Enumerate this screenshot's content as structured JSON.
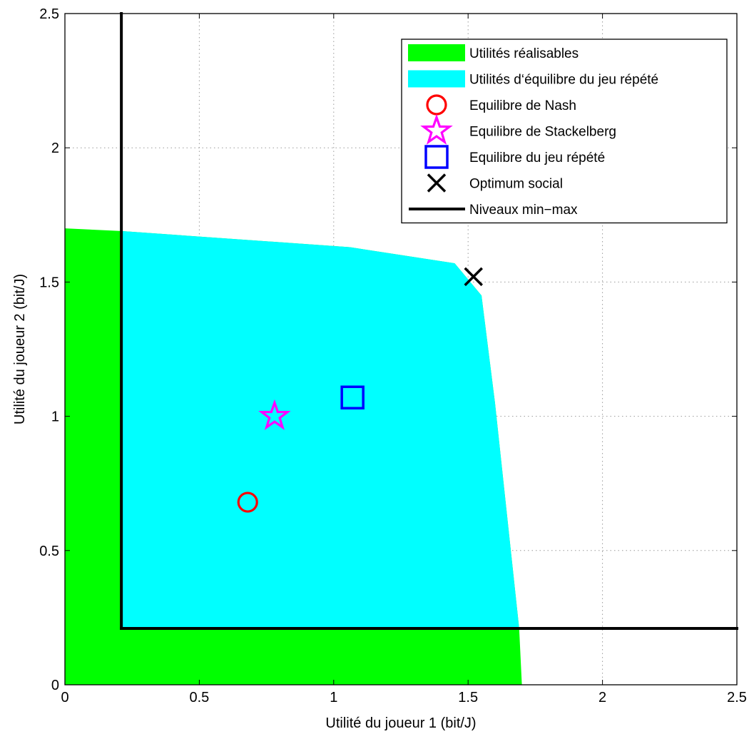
{
  "chart_data": {
    "type": "area",
    "xlabel": "Utilité du joueur 1 (bit/J)",
    "ylabel": "Utilité du joueur 2 (bit/J)",
    "xlim": [
      0,
      2.5
    ],
    "ylim": [
      0,
      2.5
    ],
    "grid": true,
    "legend_position": "top-right",
    "x_ticks": [
      "0",
      "0.5",
      "1",
      "1.5",
      "2",
      "2.5"
    ],
    "y_ticks": [
      "0",
      "0.5",
      "1",
      "1.5",
      "2",
      "2.5"
    ],
    "series": [
      {
        "name": "Utilités réalisables",
        "kind": "region",
        "color": "#00ff00",
        "boundary": [
          [
            0,
            0
          ],
          [
            0,
            1.7
          ],
          [
            0.21,
            1.69
          ],
          [
            1.06,
            1.63
          ],
          [
            1.45,
            1.57
          ],
          [
            1.55,
            1.45
          ],
          [
            1.6,
            1.05
          ],
          [
            1.69,
            0.21
          ],
          [
            1.7,
            0
          ],
          [
            0,
            0
          ]
        ]
      },
      {
        "name": "Utilités d‘équilibre du jeu répété",
        "kind": "region",
        "color": "#00ffff",
        "boundary": [
          [
            0.21,
            0.21
          ],
          [
            0.21,
            1.69
          ],
          [
            1.06,
            1.63
          ],
          [
            1.45,
            1.57
          ],
          [
            1.55,
            1.45
          ],
          [
            1.6,
            1.05
          ],
          [
            1.69,
            0.21
          ],
          [
            0.21,
            0.21
          ]
        ]
      },
      {
        "name": "Equilibre de Nash",
        "kind": "marker",
        "marker": "circle",
        "color": "#ff0000",
        "x": 0.68,
        "y": 0.68
      },
      {
        "name": "Equilibre de Stackelberg",
        "kind": "marker",
        "marker": "star",
        "color": "#ff00ff",
        "x": 0.78,
        "y": 1.0
      },
      {
        "name": "Equilibre du jeu répété",
        "kind": "marker",
        "marker": "square",
        "color": "#0000ff",
        "x": 1.07,
        "y": 1.07
      },
      {
        "name": "Optimum social",
        "kind": "marker",
        "marker": "x",
        "color": "#000000",
        "x": 1.52,
        "y": 1.52
      },
      {
        "name": "Niveaux min−max",
        "kind": "line",
        "color": "#000000",
        "segments": [
          [
            [
              0.21,
              2.5
            ],
            [
              0.21,
              0.21
            ]
          ],
          [
            [
              0.21,
              0.21
            ],
            [
              2.5,
              0.21
            ]
          ]
        ]
      }
    ]
  }
}
